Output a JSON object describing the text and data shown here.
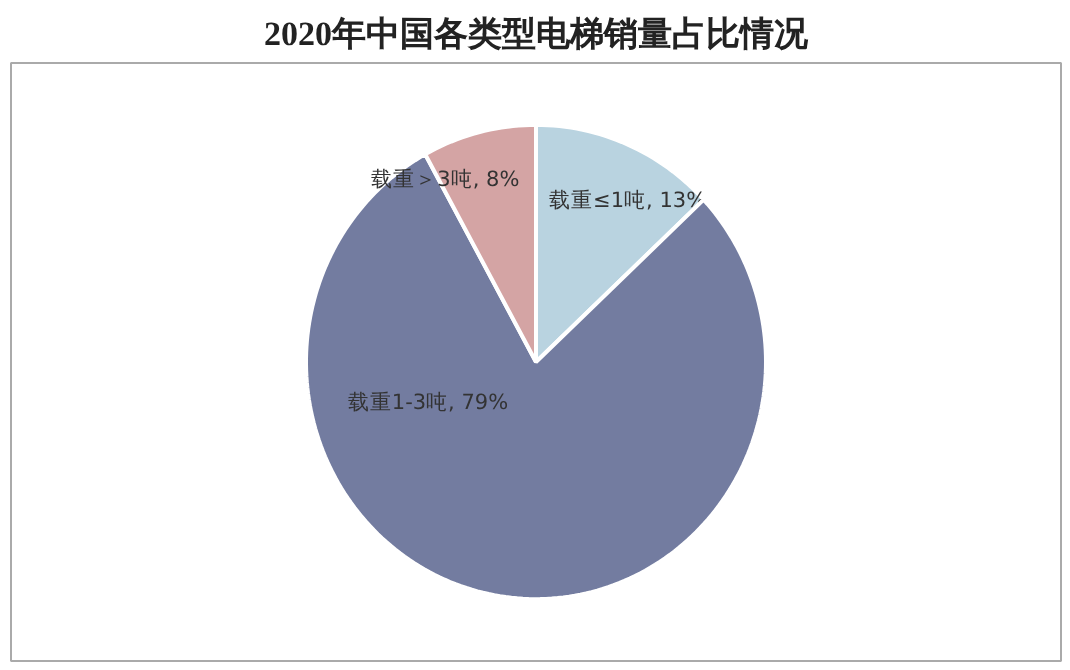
{
  "chart_data": {
    "type": "pie",
    "title": "2020年中国各类型电梯销量占比情况",
    "categories": [
      "载重≤1吨",
      "载重1-3吨",
      "载重＞3吨"
    ],
    "values": [
      13,
      79,
      8
    ],
    "value_labels": [
      "13%",
      "79%",
      "8%"
    ],
    "colors": [
      "#b9d3e0",
      "#737ca0",
      "#d4a4a4"
    ]
  }
}
